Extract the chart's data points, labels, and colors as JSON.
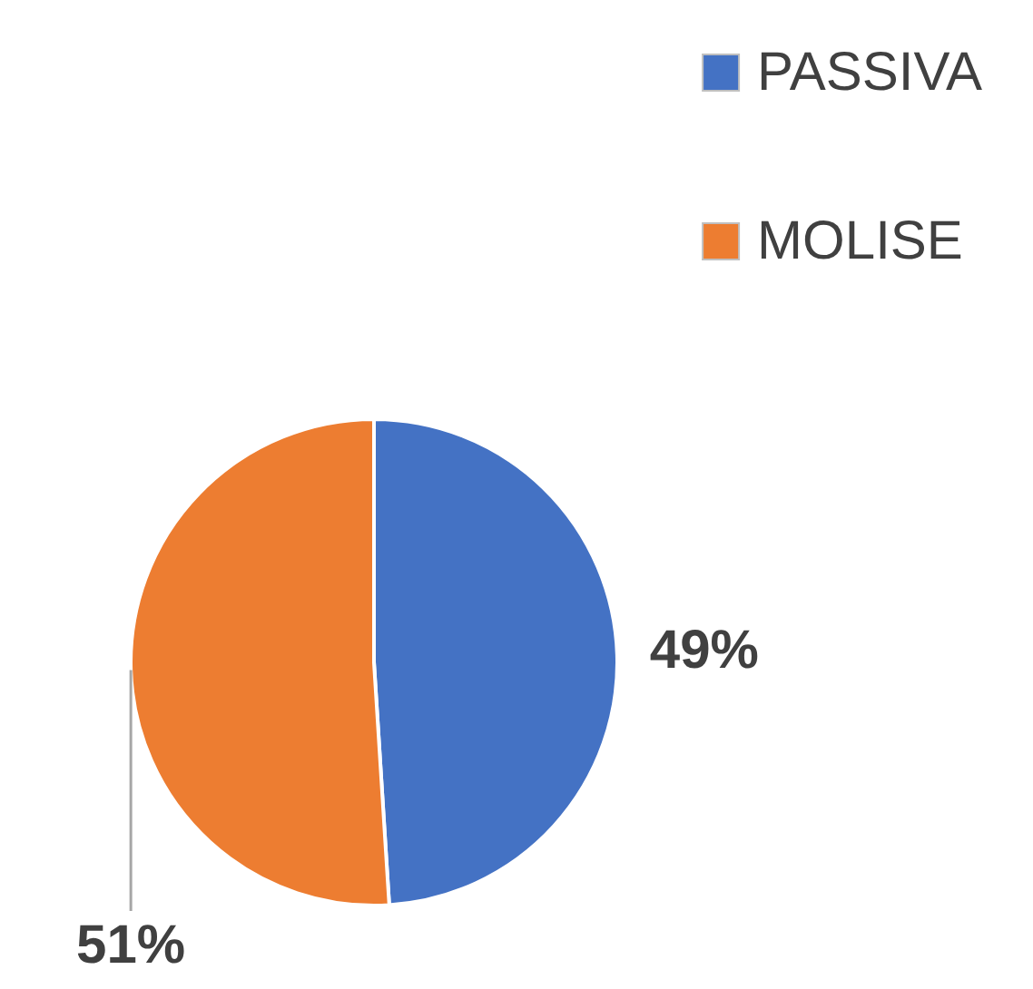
{
  "chart_data": {
    "type": "pie",
    "categories": [
      "PASSIVA",
      "MOLISE"
    ],
    "values": [
      49,
      51
    ],
    "colors": [
      "#4472c4",
      "#ed7d31"
    ],
    "value_labels": [
      "49%",
      "51%"
    ],
    "legend": "top right"
  }
}
